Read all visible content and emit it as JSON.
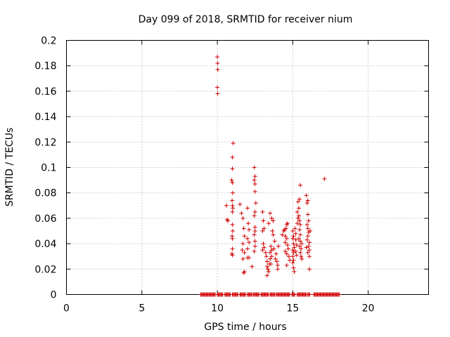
{
  "chart_data": {
    "type": "scatter",
    "title": "Day 099 of 2018, SRMTID for receiver nium",
    "xlabel": "GPS time / hours",
    "ylabel": "SRMTID / TECUs",
    "xlim": [
      0,
      24
    ],
    "ylim": [
      0,
      0.2
    ],
    "xticks": [
      0,
      5,
      10,
      15,
      20
    ],
    "xtick_labels": [
      "0",
      "5",
      "10",
      "15",
      "20"
    ],
    "yticks": [
      0,
      0.02,
      0.04,
      0.06,
      0.08,
      0.1,
      0.12,
      0.14,
      0.16,
      0.18,
      0.2
    ],
    "ytick_labels": [
      "0",
      "0.02",
      "0.04",
      "0.06",
      "0.08",
      "0.1",
      "0.12",
      "0.14",
      "0.16",
      "0.18",
      "0.2"
    ],
    "grid": true,
    "marker": "+",
    "color": "#d00000",
    "series": [
      {
        "name": "SRMTID",
        "points": [
          [
            10.0,
            0.187
          ],
          [
            10.02,
            0.182
          ],
          [
            10.03,
            0.177
          ],
          [
            10.0,
            0.163
          ],
          [
            10.02,
            0.158
          ],
          [
            10.6,
            0.07
          ],
          [
            10.65,
            0.059
          ],
          [
            10.7,
            0.058
          ],
          [
            11.05,
            0.119
          ],
          [
            11.0,
            0.108
          ],
          [
            11.0,
            0.099
          ],
          [
            10.95,
            0.09
          ],
          [
            11.0,
            0.088
          ],
          [
            11.02,
            0.08
          ],
          [
            10.98,
            0.074
          ],
          [
            11.0,
            0.07
          ],
          [
            11.03,
            0.068
          ],
          [
            11.0,
            0.065
          ],
          [
            11.0,
            0.055
          ],
          [
            11.02,
            0.05
          ],
          [
            10.98,
            0.046
          ],
          [
            11.0,
            0.044
          ],
          [
            11.0,
            0.036
          ],
          [
            10.97,
            0.032
          ],
          [
            11.0,
            0.031
          ],
          [
            11.5,
            0.071
          ],
          [
            11.6,
            0.064
          ],
          [
            11.7,
            0.06
          ],
          [
            11.75,
            0.052
          ],
          [
            11.8,
            0.046
          ],
          [
            11.7,
            0.04
          ],
          [
            11.65,
            0.035
          ],
          [
            11.8,
            0.033
          ],
          [
            11.7,
            0.028
          ],
          [
            11.8,
            0.018
          ],
          [
            11.75,
            0.017
          ],
          [
            12.0,
            0.068
          ],
          [
            12.05,
            0.056
          ],
          [
            12.1,
            0.051
          ],
          [
            12.0,
            0.044
          ],
          [
            12.1,
            0.041
          ],
          [
            12.0,
            0.036
          ],
          [
            12.1,
            0.029
          ],
          [
            12.0,
            0.029
          ],
          [
            12.3,
            0.022
          ],
          [
            12.45,
            0.1
          ],
          [
            12.5,
            0.093
          ],
          [
            12.45,
            0.09
          ],
          [
            12.5,
            0.087
          ],
          [
            12.5,
            0.081
          ],
          [
            12.55,
            0.072
          ],
          [
            12.5,
            0.065
          ],
          [
            12.45,
            0.062
          ],
          [
            12.5,
            0.053
          ],
          [
            12.5,
            0.05
          ],
          [
            12.45,
            0.047
          ],
          [
            12.5,
            0.042
          ],
          [
            12.5,
            0.038
          ],
          [
            12.45,
            0.034
          ],
          [
            13.0,
            0.065
          ],
          [
            13.05,
            0.058
          ],
          [
            13.1,
            0.052
          ],
          [
            13.0,
            0.05
          ],
          [
            13.05,
            0.04
          ],
          [
            13.1,
            0.037
          ],
          [
            13.0,
            0.035
          ],
          [
            13.2,
            0.033
          ],
          [
            13.25,
            0.03
          ],
          [
            13.3,
            0.026
          ],
          [
            13.3,
            0.022
          ],
          [
            13.35,
            0.02
          ],
          [
            13.3,
            0.015
          ],
          [
            13.4,
            0.018
          ],
          [
            13.45,
            0.024
          ],
          [
            13.5,
            0.028
          ],
          [
            13.5,
            0.033
          ],
          [
            13.55,
            0.038
          ],
          [
            13.6,
            0.035
          ],
          [
            13.6,
            0.03
          ],
          [
            13.55,
            0.024
          ],
          [
            13.6,
            0.06
          ],
          [
            13.7,
            0.058
          ],
          [
            13.65,
            0.05
          ],
          [
            13.7,
            0.047
          ],
          [
            13.5,
            0.064
          ],
          [
            13.4,
            0.056
          ],
          [
            13.75,
            0.036
          ],
          [
            13.8,
            0.042
          ],
          [
            13.9,
            0.032
          ],
          [
            13.85,
            0.028
          ],
          [
            13.95,
            0.026
          ],
          [
            14.0,
            0.023
          ],
          [
            14.0,
            0.02
          ],
          [
            14.05,
            0.038
          ],
          [
            14.3,
            0.047
          ],
          [
            14.4,
            0.05
          ],
          [
            14.45,
            0.051
          ],
          [
            14.5,
            0.046
          ],
          [
            14.5,
            0.041
          ],
          [
            14.6,
            0.055
          ],
          [
            14.55,
            0.052
          ],
          [
            14.65,
            0.056
          ],
          [
            14.6,
            0.044
          ],
          [
            14.65,
            0.039
          ],
          [
            14.5,
            0.034
          ],
          [
            14.6,
            0.032
          ],
          [
            14.6,
            0.023
          ],
          [
            14.7,
            0.036
          ],
          [
            14.75,
            0.03
          ],
          [
            14.8,
            0.027
          ],
          [
            15.0,
            0.05
          ],
          [
            15.05,
            0.046
          ],
          [
            15.0,
            0.044
          ],
          [
            15.05,
            0.04
          ],
          [
            15.1,
            0.037
          ],
          [
            15.0,
            0.035
          ],
          [
            15.05,
            0.033
          ],
          [
            15.0,
            0.03
          ],
          [
            15.05,
            0.027
          ],
          [
            15.0,
            0.025
          ],
          [
            15.05,
            0.021
          ],
          [
            15.1,
            0.018
          ],
          [
            15.15,
            0.052
          ],
          [
            15.2,
            0.048
          ],
          [
            15.2,
            0.043
          ],
          [
            15.25,
            0.039
          ],
          [
            15.2,
            0.034
          ],
          [
            15.25,
            0.031
          ],
          [
            15.3,
            0.056
          ],
          [
            15.35,
            0.06
          ],
          [
            15.3,
            0.065
          ],
          [
            15.4,
            0.068
          ],
          [
            15.35,
            0.073
          ],
          [
            15.45,
            0.075
          ],
          [
            15.5,
            0.086
          ],
          [
            15.4,
            0.062
          ],
          [
            15.45,
            0.058
          ],
          [
            15.5,
            0.055
          ],
          [
            15.45,
            0.051
          ],
          [
            15.5,
            0.047
          ],
          [
            15.4,
            0.044
          ],
          [
            15.5,
            0.042
          ],
          [
            15.45,
            0.038
          ],
          [
            15.55,
            0.036
          ],
          [
            15.5,
            0.033
          ],
          [
            15.55,
            0.03
          ],
          [
            15.6,
            0.04
          ],
          [
            15.6,
            0.028
          ],
          [
            15.9,
            0.078
          ],
          [
            16.0,
            0.074
          ],
          [
            15.95,
            0.072
          ],
          [
            16.0,
            0.063
          ],
          [
            16.05,
            0.058
          ],
          [
            15.95,
            0.055
          ],
          [
            16.0,
            0.052
          ],
          [
            16.05,
            0.049
          ],
          [
            16.0,
            0.046
          ],
          [
            15.95,
            0.043
          ],
          [
            16.1,
            0.041
          ],
          [
            16.05,
            0.038
          ],
          [
            16.1,
            0.035
          ],
          [
            16.0,
            0.033
          ],
          [
            16.1,
            0.03
          ],
          [
            16.15,
            0.05
          ],
          [
            16.1,
            0.02
          ],
          [
            15.9,
            0.037
          ],
          [
            17.1,
            0.091
          ]
        ]
      }
    ],
    "zero_band_segments": [
      [
        8.9,
        9.9
      ],
      [
        10.0,
        10.4
      ],
      [
        10.5,
        10.9
      ],
      [
        11.0,
        11.4
      ],
      [
        11.5,
        11.9
      ],
      [
        12.0,
        12.3
      ],
      [
        12.4,
        12.8
      ],
      [
        12.9,
        13.4
      ],
      [
        13.5,
        13.8
      ],
      [
        13.9,
        14.8
      ],
      [
        14.95,
        15.15
      ],
      [
        15.3,
        15.9
      ],
      [
        16.0,
        16.15
      ],
      [
        16.4,
        18.1
      ]
    ]
  }
}
